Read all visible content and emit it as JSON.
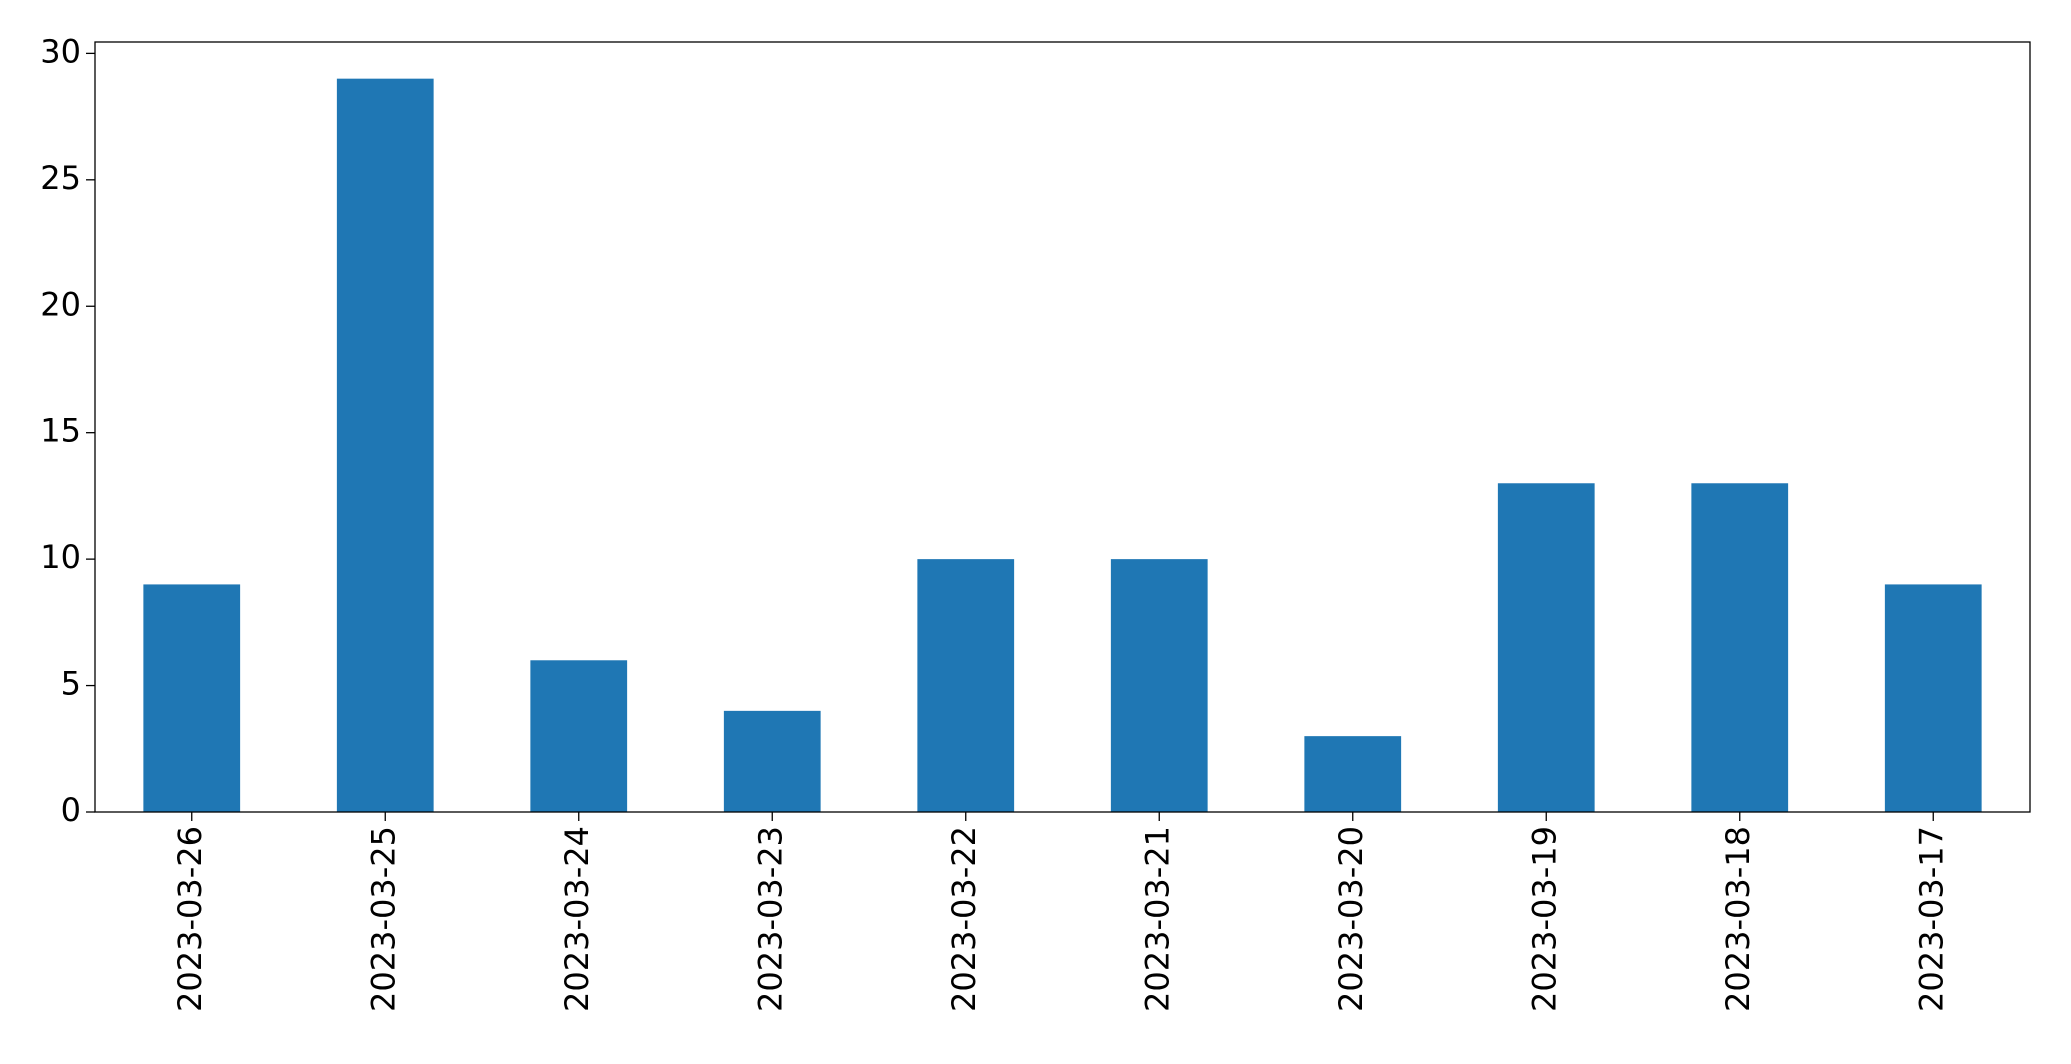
{
  "chart_data": {
    "type": "bar",
    "categories": [
      "2023-03-26",
      "2023-03-25",
      "2023-03-24",
      "2023-03-23",
      "2023-03-22",
      "2023-03-21",
      "2023-03-20",
      "2023-03-19",
      "2023-03-18",
      "2023-03-17"
    ],
    "values": [
      9,
      29,
      6,
      4,
      10,
      10,
      3,
      13,
      13,
      9
    ],
    "color": "#1f77b4",
    "ylim": [
      0,
      30.45
    ],
    "yticks": [
      0,
      5,
      10,
      15,
      20,
      25,
      30
    ],
    "grid": false
  }
}
